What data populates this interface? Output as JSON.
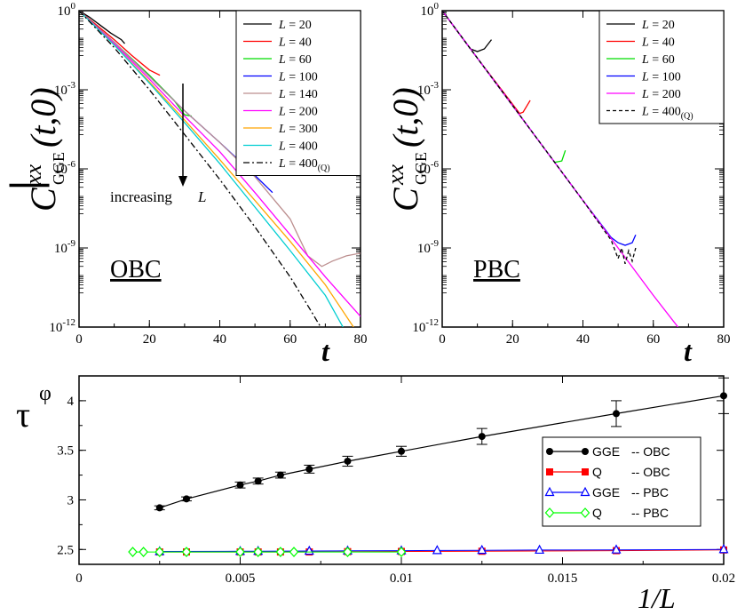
{
  "panels": {
    "obc": {
      "type": "line",
      "ylabel": "|C_GGE^xx(t,0)|",
      "ylabel_parts": {
        "bar_left": "|",
        "main": "C",
        "sup": "xx",
        "sub": "GGE",
        "args": "(t,0)",
        "bar_right": "|"
      },
      "xlabel": "t",
      "panel_label": "OBC",
      "annotation": "increasing",
      "annotation_var": "L",
      "xlim": [
        0,
        80
      ],
      "ylim_log10": [
        -12,
        0
      ],
      "xticks": [
        "0",
        "20",
        "40",
        "60",
        "80"
      ],
      "yticks": [
        {
          "mant": "10",
          "exp": "0",
          "value": 0
        },
        {
          "mant": "10",
          "exp": "-3",
          "value": -3
        },
        {
          "mant": "10",
          "exp": "-6",
          "value": -6
        },
        {
          "mant": "10",
          "exp": "-9",
          "value": -9
        },
        {
          "mant": "10",
          "exp": "-12",
          "value": -12
        }
      ],
      "series": [
        {
          "name": "L = 20",
          "var": "L",
          "val": "20",
          "sub": "",
          "color": "#000000",
          "dash": "",
          "points": [
            [
              0,
              0
            ],
            [
              3,
              -0.25
            ],
            [
              6,
              -0.55
            ],
            [
              9,
              -0.85
            ],
            [
              12,
              -1.1
            ],
            [
              13,
              -1.25
            ]
          ]
        },
        {
          "name": "L = 40",
          "var": "L",
          "val": "40",
          "sub": "",
          "color": "#ff0000",
          "dash": "",
          "points": [
            [
              0,
              0
            ],
            [
              5,
              -0.55
            ],
            [
              10,
              -1.1
            ],
            [
              15,
              -1.7
            ],
            [
              20,
              -2.25
            ],
            [
              23,
              -2.45
            ]
          ]
        },
        {
          "name": "L = 60",
          "var": "L",
          "val": "60",
          "sub": "",
          "color": "#00dd00",
          "dash": "",
          "points": [
            [
              0,
              0
            ],
            [
              10,
              -1.2
            ],
            [
              20,
              -2.45
            ],
            [
              27,
              -3.4
            ],
            [
              30,
              -3.95
            ],
            [
              32,
              -4.0
            ]
          ]
        },
        {
          "name": "L = 100",
          "var": "L",
          "val": "100",
          "sub": "",
          "color": "#0000ff",
          "dash": "",
          "points": [
            [
              0,
              0
            ],
            [
              10,
              -1.2
            ],
            [
              20,
              -2.5
            ],
            [
              30,
              -3.8
            ],
            [
              40,
              -5.0
            ],
            [
              50,
              -6.25
            ],
            [
              55,
              -6.9
            ]
          ]
        },
        {
          "name": "L = 140",
          "var": "L",
          "val": "140",
          "sub": "",
          "color": "#bc8f8f",
          "dash": "",
          "points": [
            [
              0,
              0
            ],
            [
              10,
              -1.2
            ],
            [
              20,
              -2.5
            ],
            [
              30,
              -3.8
            ],
            [
              40,
              -5.0
            ],
            [
              50,
              -6.3
            ],
            [
              60,
              -7.9
            ],
            [
              65,
              -9.3
            ],
            [
              69,
              -9.7
            ],
            [
              72,
              -9.5
            ],
            [
              76,
              -9.3
            ],
            [
              80,
              -9.2
            ]
          ]
        },
        {
          "name": "L = 200",
          "var": "L",
          "val": "200",
          "sub": "",
          "color": "#ff00ff",
          "dash": "",
          "points": [
            [
              0,
              0
            ],
            [
              10,
              -1.25
            ],
            [
              20,
              -2.6
            ],
            [
              30,
              -4.0
            ],
            [
              40,
              -5.35
            ],
            [
              50,
              -6.9
            ],
            [
              60,
              -8.5
            ],
            [
              70,
              -10.1
            ],
            [
              80,
              -11.6
            ]
          ]
        },
        {
          "name": "L = 300",
          "var": "L",
          "val": "300",
          "sub": "",
          "color": "#ffa500",
          "dash": "",
          "points": [
            [
              0,
              0
            ],
            [
              10,
              -1.3
            ],
            [
              20,
              -2.7
            ],
            [
              30,
              -4.15
            ],
            [
              40,
              -5.65
            ],
            [
              50,
              -7.2
            ],
            [
              60,
              -8.75
            ],
            [
              70,
              -10.4
            ],
            [
              78,
              -12.0
            ]
          ]
        },
        {
          "name": "L = 400",
          "var": "L",
          "val": "400",
          "sub": "",
          "color": "#00ced1",
          "dash": "",
          "points": [
            [
              0,
              0
            ],
            [
              10,
              -1.3
            ],
            [
              20,
              -2.75
            ],
            [
              30,
              -4.25
            ],
            [
              40,
              -5.8
            ],
            [
              50,
              -7.45
            ],
            [
              60,
              -9.1
            ],
            [
              70,
              -10.8
            ],
            [
              75,
              -12.0
            ]
          ]
        },
        {
          "name": "L = 400(Q)",
          "var": "L",
          "val": "400",
          "sub": "(Q)",
          "color": "#000000",
          "dash": "7,3,2,3",
          "points": [
            [
              0,
              0
            ],
            [
              10,
              -1.4
            ],
            [
              20,
              -3.0
            ],
            [
              30,
              -4.7
            ],
            [
              40,
              -6.4
            ],
            [
              50,
              -8.2
            ],
            [
              60,
              -10.1
            ],
            [
              66,
              -11.4
            ],
            [
              70,
              -12.3
            ]
          ]
        }
      ]
    },
    "pbc": {
      "type": "line",
      "ylabel": "|C_GGE^xx(t,0)|",
      "ylabel_parts": {
        "bar_left": "|",
        "main": "C",
        "sup": "xx",
        "sub": "GGE",
        "args": "(t,0)",
        "bar_right": "|"
      },
      "xlabel": "t",
      "panel_label": "PBC",
      "xlim": [
        0,
        80
      ],
      "ylim_log10": [
        -12,
        0
      ],
      "xticks": [
        "0",
        "20",
        "40",
        "60",
        "80"
      ],
      "yticks": [
        {
          "mant": "10",
          "exp": "0",
          "value": 0
        },
        {
          "mant": "10",
          "exp": "-3",
          "value": -3
        },
        {
          "mant": "10",
          "exp": "-6",
          "value": -6
        },
        {
          "mant": "10",
          "exp": "-9",
          "value": -9
        },
        {
          "mant": "10",
          "exp": "-12",
          "value": -12
        }
      ],
      "series": [
        {
          "name": "L = 20",
          "var": "L",
          "val": "20",
          "sub": "",
          "color": "#000000",
          "dash": "",
          "points": [
            [
              0,
              0
            ],
            [
              5,
              -0.9
            ],
            [
              8,
              -1.45
            ],
            [
              10,
              -1.55
            ],
            [
              12,
              -1.45
            ],
            [
              14,
              -1.1
            ]
          ]
        },
        {
          "name": "L = 40",
          "var": "L",
          "val": "40",
          "sub": "",
          "color": "#ff0000",
          "dash": "",
          "points": [
            [
              0,
              0
            ],
            [
              10,
              -1.8
            ],
            [
              20,
              -3.55
            ],
            [
              22,
              -3.9
            ],
            [
              23,
              -3.85
            ],
            [
              25,
              -3.4
            ]
          ]
        },
        {
          "name": "L = 60",
          "var": "L",
          "val": "60",
          "sub": "",
          "color": "#00dd00",
          "dash": "",
          "points": [
            [
              0,
              0
            ],
            [
              10,
              -1.8
            ],
            [
              20,
              -3.6
            ],
            [
              30,
              -5.4
            ],
            [
              32,
              -5.75
            ],
            [
              34,
              -5.7
            ],
            [
              35,
              -5.3
            ]
          ]
        },
        {
          "name": "L = 100",
          "var": "L",
          "val": "100",
          "sub": "",
          "color": "#0000ff",
          "dash": "",
          "points": [
            [
              0,
              0
            ],
            [
              10,
              -1.8
            ],
            [
              20,
              -3.6
            ],
            [
              30,
              -5.4
            ],
            [
              40,
              -7.2
            ],
            [
              48,
              -8.6
            ],
            [
              50,
              -8.8
            ],
            [
              52,
              -8.9
            ],
            [
              54,
              -8.8
            ],
            [
              55,
              -8.5
            ]
          ]
        },
        {
          "name": "L = 200",
          "var": "L",
          "val": "200",
          "sub": "",
          "color": "#ff00ff",
          "dash": "",
          "points": [
            [
              0,
              0
            ],
            [
              10,
              -1.8
            ],
            [
              20,
              -3.6
            ],
            [
              30,
              -5.4
            ],
            [
              40,
              -7.2
            ],
            [
              50,
              -9.0
            ],
            [
              60,
              -10.8
            ],
            [
              67,
              -12.0
            ]
          ]
        },
        {
          "name": "L = 400(Q)",
          "var": "L",
          "val": "400",
          "sub": "(Q)",
          "color": "#000000",
          "dash": "4,3",
          "points": [
            [
              0,
              0
            ],
            [
              10,
              -1.8
            ],
            [
              20,
              -3.6
            ],
            [
              30,
              -5.4
            ],
            [
              40,
              -7.2
            ],
            [
              48,
              -8.7
            ],
            [
              50,
              -9.4
            ],
            [
              51,
              -9.0
            ],
            [
              52,
              -9.6
            ],
            [
              53,
              -9.1
            ],
            [
              54,
              -9.5
            ],
            [
              55,
              -9.0
            ]
          ]
        }
      ]
    },
    "tau": {
      "type": "line",
      "ylabel_main": "τ",
      "ylabel_sup": "φ",
      "xlabel": "1/L",
      "xlim": [
        0,
        0.02
      ],
      "ylim": [
        2.35,
        4.25
      ],
      "xticks": [
        "0",
        "0.005",
        "0.01",
        "0.015",
        "0.02"
      ],
      "yticks": [
        "2.5",
        "3",
        "3.5",
        "4"
      ],
      "series": [
        {
          "name": "GGE -- OBC",
          "label_a": "GGE",
          "label_b": "-- OBC",
          "color": "#000000",
          "marker": "filled-circle",
          "x": [
            0.0025,
            0.003333,
            0.005,
            0.005556,
            0.00625,
            0.007143,
            0.008333,
            0.01,
            0.0125,
            0.016667,
            0.02
          ],
          "y": [
            2.92,
            3.01,
            3.15,
            3.19,
            3.25,
            3.31,
            3.39,
            3.49,
            3.64,
            3.87,
            4.05
          ],
          "err": [
            0.02,
            0.02,
            0.03,
            0.03,
            0.03,
            0.04,
            0.05,
            0.05,
            0.08,
            0.13,
            0.18
          ]
        },
        {
          "name": "Q -- OBC",
          "label_a": "Q",
          "label_b": "-- OBC",
          "color": "#ff0000",
          "marker": "filled-square",
          "x": [
            0.0025,
            0.003333,
            0.005,
            0.005556,
            0.00625,
            0.007143,
            0.008333,
            0.01,
            0.0125,
            0.016667,
            0.02
          ],
          "y": [
            2.475,
            2.475,
            2.475,
            2.475,
            2.475,
            2.475,
            2.478,
            2.48,
            2.482,
            2.488,
            2.495
          ]
        },
        {
          "name": "GGE -- PBC",
          "label_a": "GGE",
          "label_b": "-- PBC",
          "color": "#0000ff",
          "marker": "open-triangle",
          "x": [
            0.0025,
            0.005,
            0.005556,
            0.007143,
            0.008333,
            0.01,
            0.011111,
            0.0125,
            0.014286,
            0.016667,
            0.02
          ],
          "y": [
            2.48,
            2.482,
            2.483,
            2.484,
            2.486,
            2.488,
            2.49,
            2.492,
            2.494,
            2.496,
            2.5
          ]
        },
        {
          "name": "Q -- PBC",
          "label_a": "Q",
          "label_b": "-- PBC",
          "color": "#00ff00",
          "marker": "open-diamond",
          "x": [
            0.001667,
            0.002,
            0.0025,
            0.003333,
            0.005,
            0.005556,
            0.00625,
            0.006667,
            0.008333,
            0.01
          ],
          "y": [
            2.475,
            2.475,
            2.475,
            2.475,
            2.475,
            2.475,
            2.475,
            2.475,
            2.475,
            2.475
          ]
        }
      ]
    }
  }
}
